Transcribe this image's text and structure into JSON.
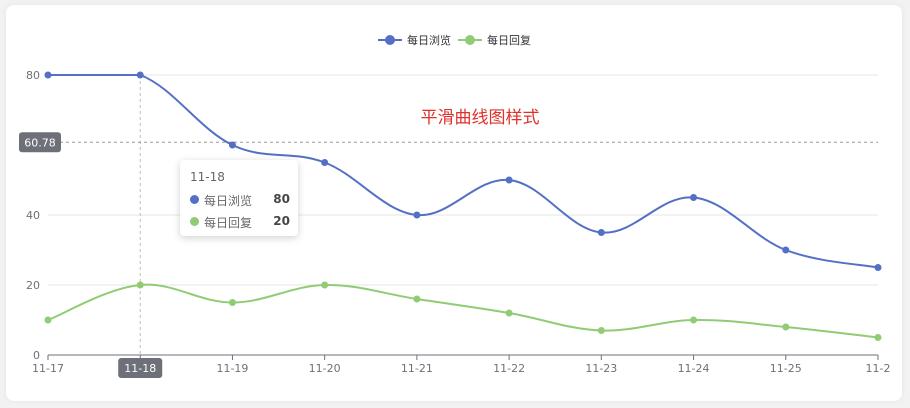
{
  "chart_data": {
    "type": "line",
    "title": "平滑曲线图样式",
    "categories": [
      "11-17",
      "11-18",
      "11-19",
      "11-20",
      "11-21",
      "11-22",
      "11-23",
      "11-24",
      "11-25",
      "11-2"
    ],
    "series": [
      {
        "name": "每日浏览",
        "values": [
          80,
          80,
          60,
          55,
          40,
          50,
          35,
          45,
          30,
          25
        ],
        "color": "#5470c6"
      },
      {
        "name": "每日回复",
        "values": [
          10,
          20,
          15,
          20,
          16,
          12,
          7,
          10,
          8,
          5
        ],
        "color": "#91cc75"
      }
    ],
    "ylim": [
      0,
      80
    ],
    "yticks": [
      "0",
      "20",
      "40",
      "80"
    ],
    "smooth": true,
    "grid": true,
    "legend": "top-center",
    "crosshair": {
      "x_label": "11-18",
      "y_label": "60.78",
      "y_value": 60.78
    }
  },
  "tooltip": {
    "title": "11-18",
    "rows": [
      {
        "name": "每日浏览",
        "value": "80",
        "color": "#5470c6"
      },
      {
        "name": "每日回复",
        "value": "20",
        "color": "#91cc75"
      }
    ]
  },
  "title_color": "#e0302b"
}
